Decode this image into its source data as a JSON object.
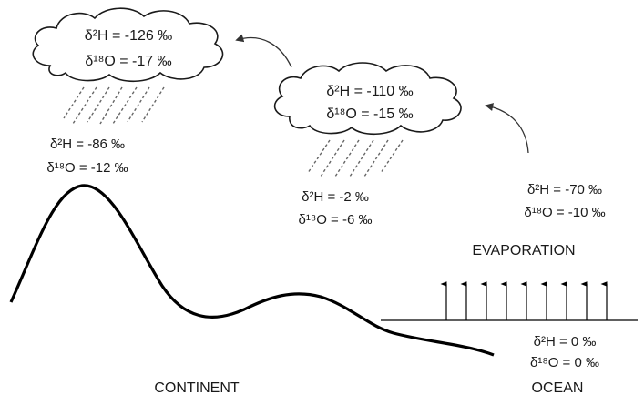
{
  "cloud_left": {
    "h2": "δ²H = -126 ‰",
    "o18": "δ¹⁸O = -17 ‰"
  },
  "cloud_mid": {
    "h2": "δ²H = -110 ‰",
    "o18": "δ¹⁸O = -15 ‰"
  },
  "rain_left": {
    "h2": "δ²H = -86 ‰",
    "o18": "δ¹⁸O = -12 ‰"
  },
  "rain_mid": {
    "h2": "δ²H = -2 ‰",
    "o18": "δ¹⁸O = -6 ‰"
  },
  "vapor": {
    "h2": "δ²H = -70 ‰",
    "o18": "δ¹⁸O = -10 ‰"
  },
  "ocean_values": {
    "h2": "δ²H = 0 ‰",
    "o18": "δ¹⁸O = 0 ‰"
  },
  "labels": {
    "evaporation": "EVAPORATION",
    "continent": "CONTINENT",
    "ocean": "OCEAN"
  }
}
